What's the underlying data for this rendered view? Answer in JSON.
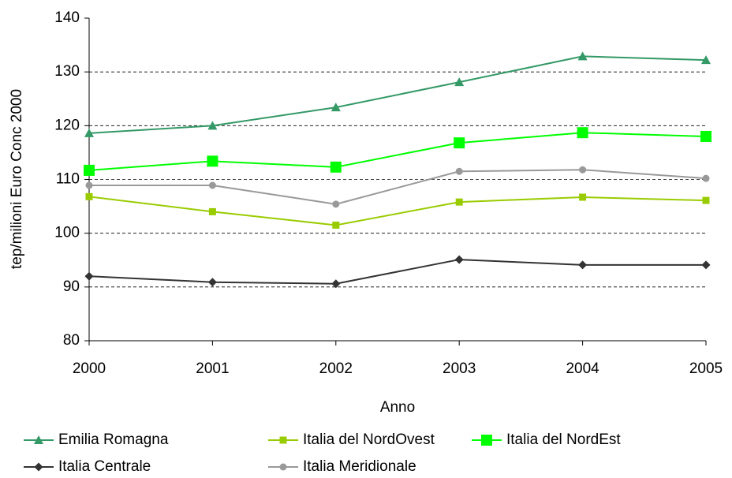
{
  "chart_data": {
    "type": "line",
    "x_label": "Anno",
    "y_label": "tep/milioni Euro Conc 2000",
    "categories": [
      "2000",
      "2001",
      "2002",
      "2003",
      "2004",
      "2005"
    ],
    "ylim": [
      80,
      140
    ],
    "yticks": [
      80,
      90,
      100,
      110,
      120,
      130,
      140
    ],
    "grid": true,
    "legend": "bottom",
    "series": [
      {
        "name": "Emilia Romagna",
        "color": "#339966",
        "marker": "triangle",
        "values": [
          118.6,
          120.0,
          123.4,
          128.1,
          132.9,
          132.2
        ]
      },
      {
        "name": "Italia del NordOvest",
        "color": "#99cc00",
        "marker": "square",
        "values": [
          106.8,
          104.0,
          101.5,
          105.8,
          106.7,
          106.1
        ]
      },
      {
        "name": "Italia del NordEst",
        "color": "#00ff00",
        "marker": "big-square",
        "values": [
          111.7,
          113.4,
          112.3,
          116.8,
          118.7,
          118.0
        ]
      },
      {
        "name": "Italia Centrale",
        "color": "#333333",
        "marker": "diamond",
        "values": [
          92.0,
          90.9,
          90.6,
          95.1,
          94.1,
          94.1
        ]
      },
      {
        "name": "Italia Meridionale",
        "color": "#999999",
        "marker": "circle",
        "values": [
          108.9,
          108.9,
          105.4,
          111.5,
          111.8,
          110.2
        ]
      }
    ]
  }
}
